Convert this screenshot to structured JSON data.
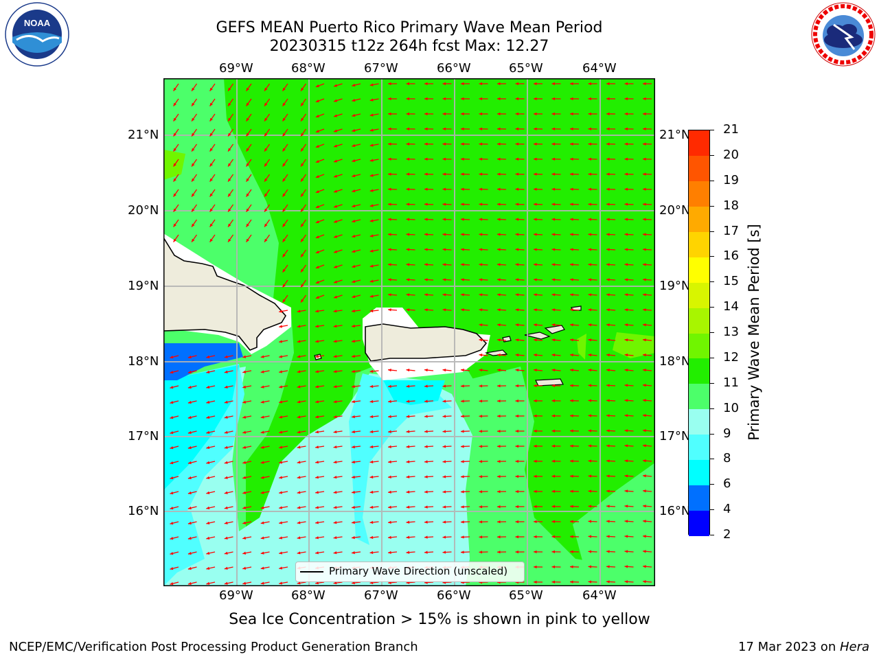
{
  "header": {
    "title_line1": "GEFS MEAN Puerto Rico Primary Wave Mean Period",
    "title_line2": "20230315 t12z 264h fcst   Max: 12.27"
  },
  "logos": {
    "left": {
      "name": "noaa-logo",
      "text": "NOAA",
      "ring_text": "NATIONAL OCEANIC AND ATMOSPHERIC ADMINISTRATION · U.S. DEPARTMENT OF COMMERCE"
    },
    "right": {
      "name": "nws-logo",
      "ring_text": "NATIONAL WEATHER SERVICE"
    }
  },
  "axes": {
    "lon_labels": [
      "69°W",
      "68°W",
      "67°W",
      "66°W",
      "65°W",
      "64°W"
    ],
    "lat_labels": [
      "21°N",
      "20°N",
      "19°N",
      "18°N",
      "17°N",
      "16°N"
    ]
  },
  "colorbar": {
    "label": "Primary Wave Mean Period [s]",
    "ticks": [
      "2",
      "4",
      "6",
      "8",
      "9",
      "10",
      "11",
      "12",
      "13",
      "14",
      "15",
      "16",
      "17",
      "18",
      "19",
      "20",
      "21"
    ],
    "colors": [
      "#0000ff",
      "#0070ff",
      "#00ffff",
      "#50ffff",
      "#99fff0",
      "#4cff6a",
      "#22ee00",
      "#70f500",
      "#a8f500",
      "#d8f500",
      "#ffff00",
      "#ffd400",
      "#ffaa00",
      "#ff7f00",
      "#ff5500",
      "#ff2a00"
    ]
  },
  "legend": {
    "label": "Primary Wave Direction (unscaled)"
  },
  "footer": {
    "note": "Sea Ice Concentration > 15% is shown in pink to yellow",
    "credit": "NCEP/EMC/Verification Post Processing Product Generation Branch",
    "date": "17 Mar 2023 on ",
    "machine": "Hera"
  },
  "colors": {
    "arrow": "#ff0000",
    "land": "#eeecdc",
    "grid": "#b4b4b4"
  }
}
